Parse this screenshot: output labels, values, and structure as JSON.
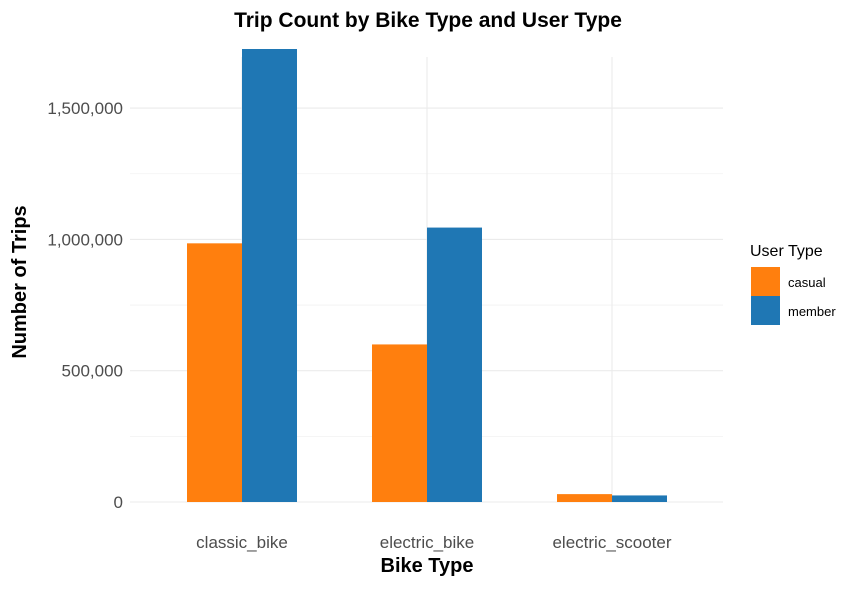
{
  "chart_data": {
    "type": "bar",
    "title": "Trip Count by Bike Type and User Type",
    "xlabel": "Bike Type",
    "ylabel": "Number of Trips",
    "categories": [
      "classic_bike",
      "electric_bike",
      "electric_scooter"
    ],
    "series": [
      {
        "name": "casual",
        "color": "#FF7F0E",
        "values": [
          985000,
          600000,
          30000
        ]
      },
      {
        "name": "member",
        "color": "#1F77B4",
        "values": [
          1725000,
          1045000,
          25000
        ]
      }
    ],
    "ylim": [
      0,
      1725000
    ],
    "yticks": [
      0,
      500000,
      1000000,
      1500000
    ],
    "ytick_labels": [
      "0",
      "500,000",
      "1,000,000",
      "1,500,000"
    ],
    "grid": true,
    "legend": {
      "title": "User Type",
      "placement": "right",
      "entries": [
        "casual",
        "member"
      ]
    }
  }
}
